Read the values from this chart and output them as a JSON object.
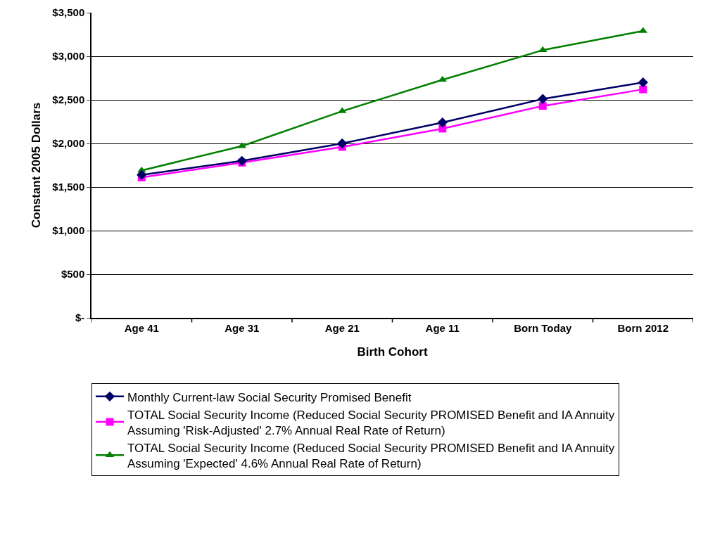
{
  "chart_data": {
    "type": "line",
    "xlabel": "Birth Cohort",
    "ylabel": "Constant 2005 Dollars",
    "categories": [
      "Age 41",
      "Age 31",
      "Age 21",
      "Age 11",
      "Born Today",
      "Born 2012"
    ],
    "series": [
      {
        "name": "Monthly Current-law Social Security Promised Benefit",
        "color": "#000066",
        "marker": "diamond",
        "values": [
          1640,
          1800,
          2000,
          2240,
          2510,
          2700
        ]
      },
      {
        "name": "TOTAL Social Security Income (Reduced Social Security PROMISED Benefit and IA Annuity Assuming 'Risk-Adjusted' 2.7% Annual Real Rate of Return)",
        "color": "#ff00ff",
        "marker": "square",
        "values": [
          1610,
          1780,
          1960,
          2170,
          2430,
          2620
        ]
      },
      {
        "name": "TOTAL Social Security Income (Reduced Social Security PROMISED Benefit and IA Annuity Assuming 'Expected' 4.6% Annual Real Rate of Return)",
        "color": "#008000",
        "marker": "triangle",
        "values": [
          1690,
          1970,
          2370,
          2730,
          3070,
          3290
        ]
      }
    ],
    "ylim": [
      0,
      3500
    ],
    "yticks": [
      {
        "value": 0,
        "label": "$-"
      },
      {
        "value": 500,
        "label": "$500"
      },
      {
        "value": 1000,
        "label": "$1,000"
      },
      {
        "value": 1500,
        "label": "$1,500"
      },
      {
        "value": 2000,
        "label": "$2,000"
      },
      {
        "value": 2500,
        "label": "$2,500"
      },
      {
        "value": 3000,
        "label": "$3,000"
      },
      {
        "value": 3500,
        "label": "$3,500"
      }
    ],
    "grid": "y",
    "legend": "bottom",
    "line_style": "solid"
  }
}
